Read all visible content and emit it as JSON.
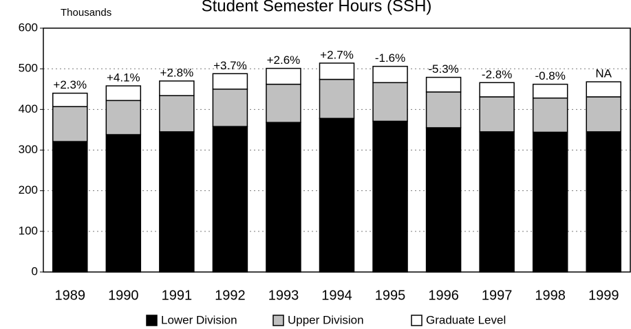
{
  "chart_data": {
    "type": "stacked_bar",
    "title": "Student Semester Hours (SSH)",
    "y_label": "Thousands",
    "categories": [
      "1989",
      "1990",
      "1991",
      "1992",
      "1993",
      "1994",
      "1995",
      "1996",
      "1997",
      "1998",
      "1999"
    ],
    "series": [
      {
        "name": "Lower Division",
        "color": "#000000",
        "values": [
          321,
          338,
          345,
          358,
          368,
          378,
          371,
          355,
          345,
          344,
          345
        ]
      },
      {
        "name": "Upper Division",
        "color": "#c0c0c0",
        "values": [
          86,
          84,
          89,
          92,
          94,
          96,
          95,
          88,
          86,
          84,
          86
        ]
      },
      {
        "name": "Graduate Level",
        "color": "#ffffff",
        "values": [
          33,
          36,
          36,
          38,
          39,
          40,
          40,
          36,
          35,
          34,
          37
        ]
      }
    ],
    "annotations": [
      "+2.3%",
      "+4.1%",
      "+2.8%",
      "+3.7%",
      "+2.6%",
      "+2.7%",
      "-1.6%",
      "-5.3%",
      "-2.8%",
      "-0.8%",
      "NA"
    ],
    "ylim": [
      0,
      600
    ],
    "yticks": [
      0,
      100,
      200,
      300,
      400,
      500,
      600
    ],
    "grid": true
  }
}
